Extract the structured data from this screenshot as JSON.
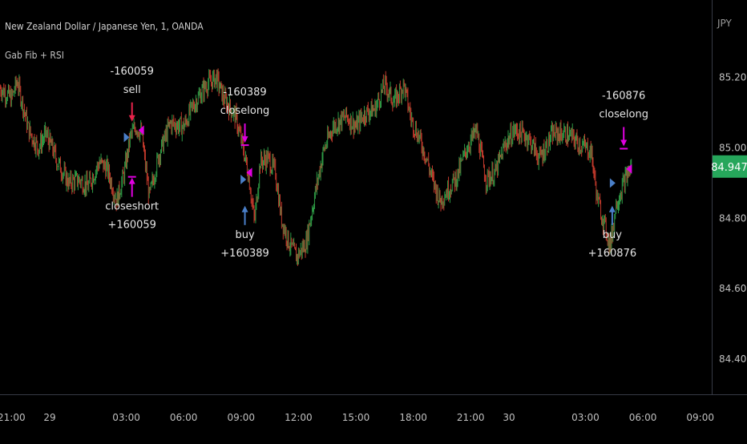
{
  "header": {
    "title": "New Zealand Dollar / Japanese Yen, 1, OANDA",
    "study": "Gab Fib  + RSI"
  },
  "price_tag": {
    "value": "84.947",
    "color": "#26a65b"
  },
  "colors": {
    "up": "#2e9b45",
    "down": "#c0392b",
    "sell_arrow": "#e8234b",
    "buy_arrow": "#4a7fc8",
    "exit_marker": "#e000e0",
    "background": "#000000",
    "grid_text": "#bfbfbf"
  },
  "chart_data": {
    "type": "candlestick",
    "currency": "JPY",
    "ylim": [
      84.3,
      85.42
    ],
    "yticks": [
      85.2,
      85.0,
      84.8,
      84.6,
      84.4
    ],
    "ytick_labels": [
      "85.200",
      "85.000",
      "84.800",
      "84.600",
      "84.400"
    ],
    "xticks": [
      "21:00",
      "29",
      "03:00",
      "06:00",
      "09:00",
      "12:00",
      "15:00",
      "18:00",
      "21:00",
      "30",
      "03:00",
      "06:00",
      "09:00"
    ],
    "xtick_hours": [
      21,
      23,
      27,
      30,
      33,
      36,
      39,
      42,
      45,
      47,
      51,
      54,
      57
    ],
    "xlim_hours": [
      20.4,
      57.6
    ],
    "last_price": 84.947,
    "close_path": [
      [
        20.4,
        85.17
      ],
      [
        21.0,
        85.14
      ],
      [
        21.3,
        85.19
      ],
      [
        21.9,
        85.05
      ],
      [
        22.4,
        85.0
      ],
      [
        22.8,
        85.04
      ],
      [
        23.2,
        84.99
      ],
      [
        23.4,
        84.96
      ],
      [
        23.6,
        84.94
      ],
      [
        24.0,
        84.9
      ],
      [
        24.5,
        84.91
      ],
      [
        25.0,
        84.89
      ],
      [
        25.6,
        84.96
      ],
      [
        26.0,
        84.94
      ],
      [
        26.5,
        84.85
      ],
      [
        26.9,
        84.93
      ],
      [
        27.2,
        85.03
      ],
      [
        27.5,
        85.06
      ],
      [
        27.8,
        85.04
      ],
      [
        28.2,
        84.86
      ],
      [
        28.7,
        84.98
      ],
      [
        29.3,
        85.07
      ],
      [
        30.0,
        85.06
      ],
      [
        30.5,
        85.12
      ],
      [
        31.2,
        85.18
      ],
      [
        31.7,
        85.2
      ],
      [
        32.1,
        85.14
      ],
      [
        32.7,
        85.09
      ],
      [
        33.1,
        85.0
      ],
      [
        33.4,
        84.92
      ],
      [
        33.7,
        84.79
      ],
      [
        34.0,
        84.96
      ],
      [
        34.4,
        84.97
      ],
      [
        34.8,
        84.93
      ],
      [
        35.1,
        84.8
      ],
      [
        35.5,
        84.73
      ],
      [
        35.9,
        84.69
      ],
      [
        36.4,
        84.73
      ],
      [
        36.9,
        84.88
      ],
      [
        37.3,
        84.99
      ],
      [
        37.8,
        85.06
      ],
      [
        38.5,
        85.09
      ],
      [
        39.0,
        85.06
      ],
      [
        39.5,
        85.1
      ],
      [
        40.0,
        85.11
      ],
      [
        40.5,
        85.18
      ],
      [
        41.0,
        85.13
      ],
      [
        41.5,
        85.18
      ],
      [
        41.9,
        85.08
      ],
      [
        42.3,
        85.03
      ],
      [
        42.7,
        84.97
      ],
      [
        43.0,
        84.91
      ],
      [
        43.4,
        84.85
      ],
      [
        43.8,
        84.88
      ],
      [
        44.3,
        84.92
      ],
      [
        44.8,
        85.0
      ],
      [
        45.3,
        85.05
      ],
      [
        45.8,
        84.91
      ],
      [
        46.3,
        84.93
      ],
      [
        46.8,
        85.01
      ],
      [
        47.3,
        85.05
      ],
      [
        48.0,
        85.03
      ],
      [
        48.6,
        84.97
      ],
      [
        49.3,
        85.04
      ],
      [
        49.9,
        85.04
      ],
      [
        50.3,
        85.03
      ],
      [
        50.7,
        85.01
      ],
      [
        51.3,
        84.99
      ],
      [
        51.6,
        84.86
      ],
      [
        51.8,
        84.82
      ],
      [
        52.3,
        84.72
      ],
      [
        52.6,
        84.84
      ],
      [
        53.0,
        84.9
      ],
      [
        53.4,
        84.95
      ]
    ],
    "signals": [
      {
        "kind": "sell",
        "hour": 27.3,
        "arrow_price": 85.07,
        "lines": [
          "-160059",
          "sell"
        ],
        "label_pos": "above"
      },
      {
        "kind": "closeshort",
        "hour": 27.3,
        "arrow_price": 84.92,
        "lines": [
          "closeshort",
          "+160059"
        ],
        "label_pos": "below"
      },
      {
        "kind": "closelong",
        "hour": 33.2,
        "arrow_price": 85.01,
        "lines": [
          "-160389",
          "closelong"
        ],
        "label_pos": "above"
      },
      {
        "kind": "buy",
        "hour": 33.2,
        "arrow_price": 84.84,
        "lines": [
          "buy",
          "+160389"
        ],
        "label_pos": "below"
      },
      {
        "kind": "closelong",
        "hour": 53.0,
        "arrow_price": 85.0,
        "lines": [
          "-160876",
          "closelong"
        ],
        "label_pos": "above"
      },
      {
        "kind": "buy",
        "hour": 52.4,
        "arrow_price": 84.84,
        "lines": [
          "buy",
          "+160876"
        ],
        "label_pos": "below"
      }
    ],
    "exit_markers": [
      {
        "hour": 27.0,
        "price": 85.03,
        "dir": "right"
      },
      {
        "hour": 27.8,
        "price": 85.05,
        "dir": "left"
      },
      {
        "hour": 33.1,
        "price": 84.91,
        "dir": "right"
      },
      {
        "hour": 33.45,
        "price": 84.93,
        "dir": "left"
      },
      {
        "hour": 52.4,
        "price": 84.9,
        "dir": "right"
      },
      {
        "hour": 53.3,
        "price": 84.94,
        "dir": "left"
      }
    ]
  }
}
